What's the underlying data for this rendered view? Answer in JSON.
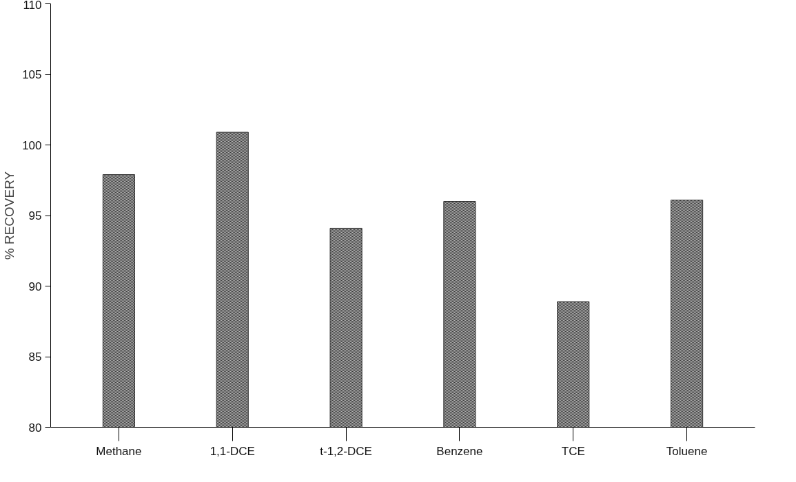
{
  "chart_data": {
    "type": "bar",
    "ylabel": "% RECOVERY",
    "categories": [
      "Methane",
      "1,1-DCE",
      "t-1,2-DCE",
      "Benzene",
      "TCE",
      "Toluene"
    ],
    "values": [
      97.9,
      100.9,
      94.1,
      96.0,
      88.9,
      96.1
    ],
    "color": "#333333",
    "ylim": [
      80,
      110
    ],
    "yticks": [
      80,
      85,
      90,
      95,
      100,
      105,
      110
    ],
    "grid": false
  }
}
